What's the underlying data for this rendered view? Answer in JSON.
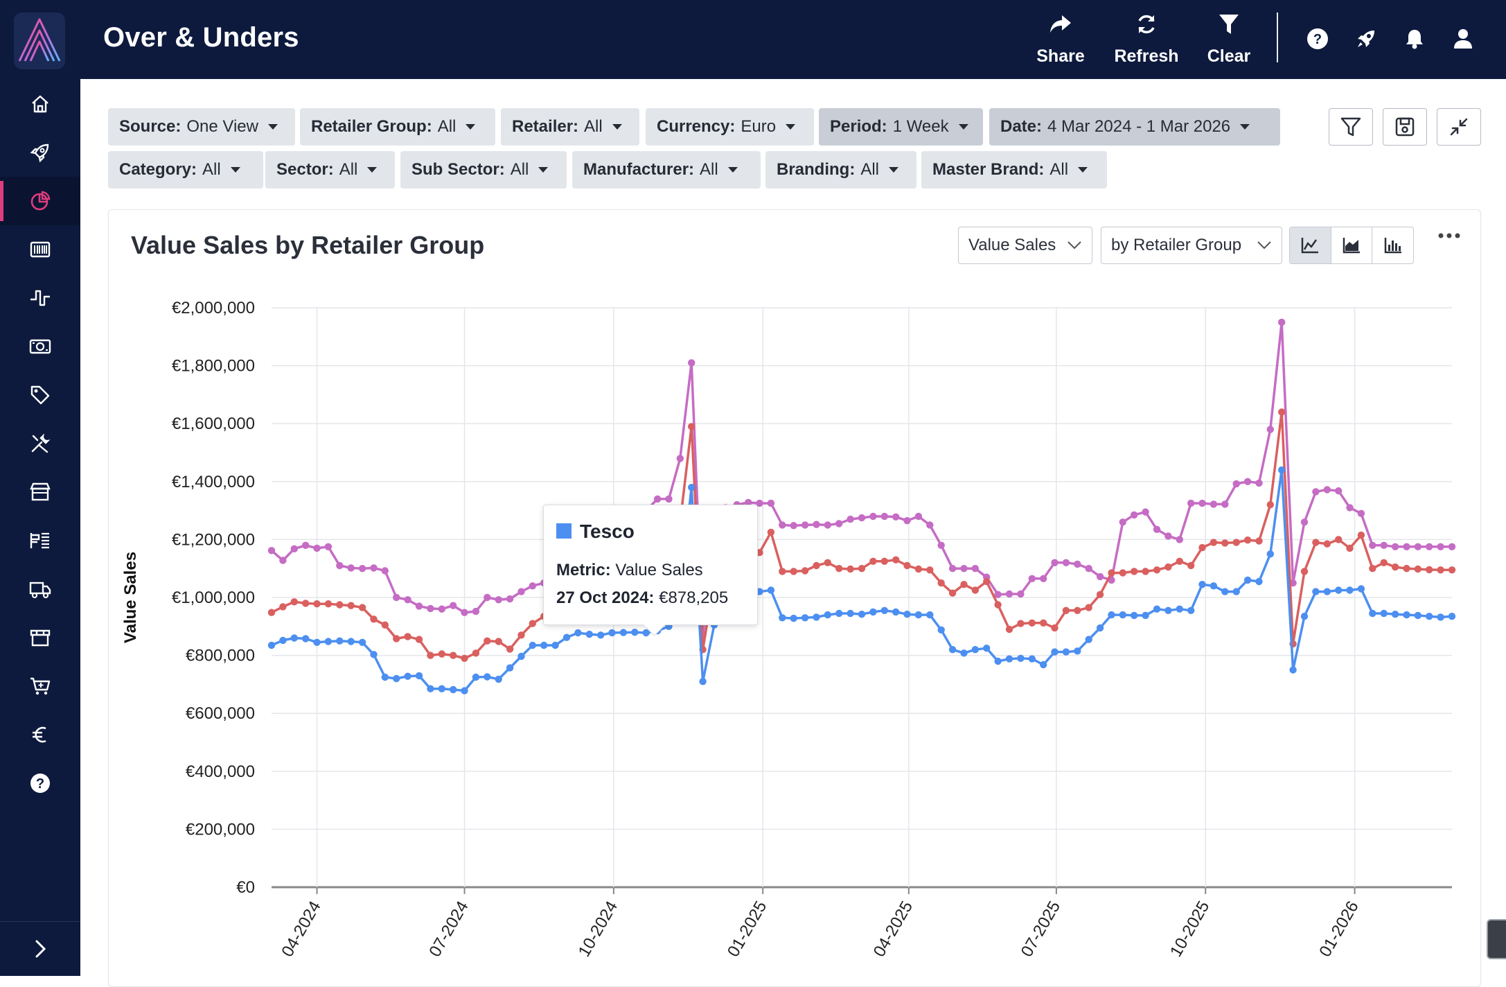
{
  "app": {
    "title": "Over & Unders"
  },
  "topbar": {
    "actions": [
      {
        "label": "Share",
        "icon": "share-icon"
      },
      {
        "label": "Refresh",
        "icon": "refresh-icon"
      },
      {
        "label": "Clear",
        "icon": "filter-icon"
      }
    ],
    "icons": [
      "help-icon",
      "rocket-icon",
      "bell-icon",
      "user-icon"
    ]
  },
  "sidebar": {
    "items": [
      {
        "name": "home-icon"
      },
      {
        "name": "rocket-icon"
      },
      {
        "name": "pie-chart-icon",
        "active": true
      },
      {
        "name": "barcode-icon"
      },
      {
        "name": "pulse-icon"
      },
      {
        "name": "cash-icon"
      },
      {
        "name": "tag-icon"
      },
      {
        "name": "tools-icon"
      },
      {
        "name": "store-icon"
      },
      {
        "name": "shelf-icon"
      },
      {
        "name": "truck-icon"
      },
      {
        "name": "storefront-icon"
      },
      {
        "name": "cart-icon"
      },
      {
        "name": "euro-icon"
      },
      {
        "name": "help-icon"
      }
    ],
    "accent": "#e03d7e"
  },
  "filters": {
    "row1": [
      {
        "key": "Source:",
        "value": "One View"
      },
      {
        "key": "Retailer Group:",
        "value": "All"
      },
      {
        "key": "Retailer:",
        "value": "All"
      },
      {
        "key": "Currency:",
        "value": "Euro"
      },
      {
        "key": "Period:",
        "value": "1 Week"
      },
      {
        "key": "Date:",
        "value": "4 Mar 2024 - 1 Mar 2026"
      }
    ],
    "row2": [
      {
        "key": "Category:",
        "value": "All"
      },
      {
        "key": "Sector:",
        "value": "All"
      },
      {
        "key": "Sub Sector:",
        "value": "All"
      },
      {
        "key": "Manufacturer:",
        "value": "All"
      },
      {
        "key": "Branding:",
        "value": "All"
      },
      {
        "key": "Master Brand:",
        "value": "All"
      }
    ]
  },
  "card": {
    "title": "Value Sales by Retailer Group",
    "metric_select": "Value Sales",
    "group_select": "by Retailer Group"
  },
  "tooltip": {
    "series": "Tesco",
    "metric_label": "Metric:",
    "metric_value": "Value Sales",
    "date_label": "27 Oct 2024:",
    "date_value": "€878,205"
  },
  "chart_data": {
    "type": "line",
    "ylabel": "Value Sales",
    "ylim": [
      0,
      2000000
    ],
    "y_ticks": [
      "€0",
      "€200,000",
      "€400,000",
      "€600,000",
      "€800,000",
      "€1,000,000",
      "€1,200,000",
      "€1,400,000",
      "€1,600,000",
      "€1,800,000",
      "€2,000,000"
    ],
    "x_ticks": [
      "04-2024",
      "07-2024",
      "10-2024",
      "01-2025",
      "04-2025",
      "07-2025",
      "10-2025",
      "01-2026"
    ],
    "x_start": "2024-03-04",
    "weeks": 105,
    "series": [
      {
        "color": "#4c8ff0",
        "values": [
          835000,
          852000,
          860000,
          858000,
          845000,
          848000,
          850000,
          848000,
          845000,
          803000,
          725000,
          720000,
          728000,
          730000,
          685000,
          685000,
          682000,
          678000,
          725000,
          726000,
          718000,
          757000,
          797000,
          835000,
          835000,
          835000,
          862000,
          878000,
          873000,
          870000,
          878205,
          879000,
          880000,
          878000,
          885000,
          900000,
          1010000,
          1380000,
          710000,
          905000,
          985000,
          985000,
          1005000,
          1020000,
          1025000,
          930000,
          928000,
          930000,
          932000,
          940000,
          945000,
          945000,
          942000,
          950000,
          955000,
          950000,
          942000,
          940000,
          940000,
          888000,
          820000,
          808000,
          820000,
          825000,
          780000,
          788000,
          790000,
          788000,
          768000,
          812000,
          812000,
          815000,
          855000,
          895000,
          940000,
          940000,
          938000,
          938000,
          960000,
          955000,
          960000,
          955000,
          1045000,
          1040000,
          1020000,
          1020000,
          1060000,
          1055000,
          1150000,
          1440000,
          750000,
          935000,
          1020000,
          1020000,
          1025000,
          1025000,
          1030000,
          945000,
          945000,
          942000,
          940000,
          938000,
          935000,
          932000,
          935000
        ]
      },
      {
        "color": "#d9605f",
        "values": [
          948000,
          968000,
          985000,
          980000,
          978000,
          978000,
          975000,
          972000,
          965000,
          925000,
          905000,
          858000,
          865000,
          855000,
          800000,
          805000,
          800000,
          790000,
          808000,
          850000,
          848000,
          822000,
          870000,
          910000,
          935000,
          932000,
          960000,
          972000,
          975000,
          985000,
          990000,
          1000000,
          1010000,
          1050000,
          1100000,
          1180000,
          1260000,
          1590000,
          820000,
          1065000,
          1140000,
          1152000,
          1175000,
          1155000,
          1225000,
          1090000,
          1090000,
          1092000,
          1110000,
          1120000,
          1100000,
          1098000,
          1100000,
          1125000,
          1125000,
          1130000,
          1110000,
          1098000,
          1095000,
          1050000,
          1015000,
          1045000,
          1025000,
          1055000,
          975000,
          890000,
          910000,
          912000,
          912000,
          895000,
          955000,
          955000,
          965000,
          1010000,
          1085000,
          1085000,
          1090000,
          1090000,
          1095000,
          1105000,
          1125000,
          1110000,
          1172000,
          1190000,
          1188000,
          1190000,
          1198000,
          1195000,
          1320000,
          1640000,
          840000,
          1090000,
          1190000,
          1185000,
          1200000,
          1170000,
          1215000,
          1100000,
          1120000,
          1105000,
          1100000,
          1098000,
          1096000,
          1095000,
          1095000
        ]
      },
      {
        "color": "#c56cc4",
        "values": [
          1162000,
          1128000,
          1168000,
          1180000,
          1170000,
          1175000,
          1110000,
          1102000,
          1100000,
          1102000,
          1092000,
          1000000,
          992000,
          970000,
          962000,
          960000,
          972000,
          948000,
          952000,
          1000000,
          992000,
          995000,
          1020000,
          1040000,
          1050000,
          1060000,
          1080000,
          1100000,
          1120000,
          1150000,
          1180000,
          1210000,
          1250000,
          1300000,
          1340000,
          1340000,
          1480000,
          1810000,
          870000,
          1210000,
          1310000,
          1320000,
          1328000,
          1325000,
          1325000,
          1250000,
          1248000,
          1250000,
          1252000,
          1250000,
          1255000,
          1270000,
          1275000,
          1280000,
          1280000,
          1278000,
          1265000,
          1280000,
          1250000,
          1180000,
          1100000,
          1100000,
          1100000,
          1070000,
          1010000,
          1012000,
          1012000,
          1065000,
          1065000,
          1120000,
          1120000,
          1115000,
          1100000,
          1072000,
          1060000,
          1260000,
          1285000,
          1295000,
          1235000,
          1212000,
          1200000,
          1325000,
          1325000,
          1322000,
          1322000,
          1392000,
          1400000,
          1395000,
          1580000,
          1950000,
          1050000,
          1260000,
          1365000,
          1372000,
          1368000,
          1310000,
          1290000,
          1180000,
          1180000,
          1175000,
          1175000,
          1175000,
          1175000,
          1175000,
          1175000
        ]
      }
    ],
    "grid": true
  }
}
